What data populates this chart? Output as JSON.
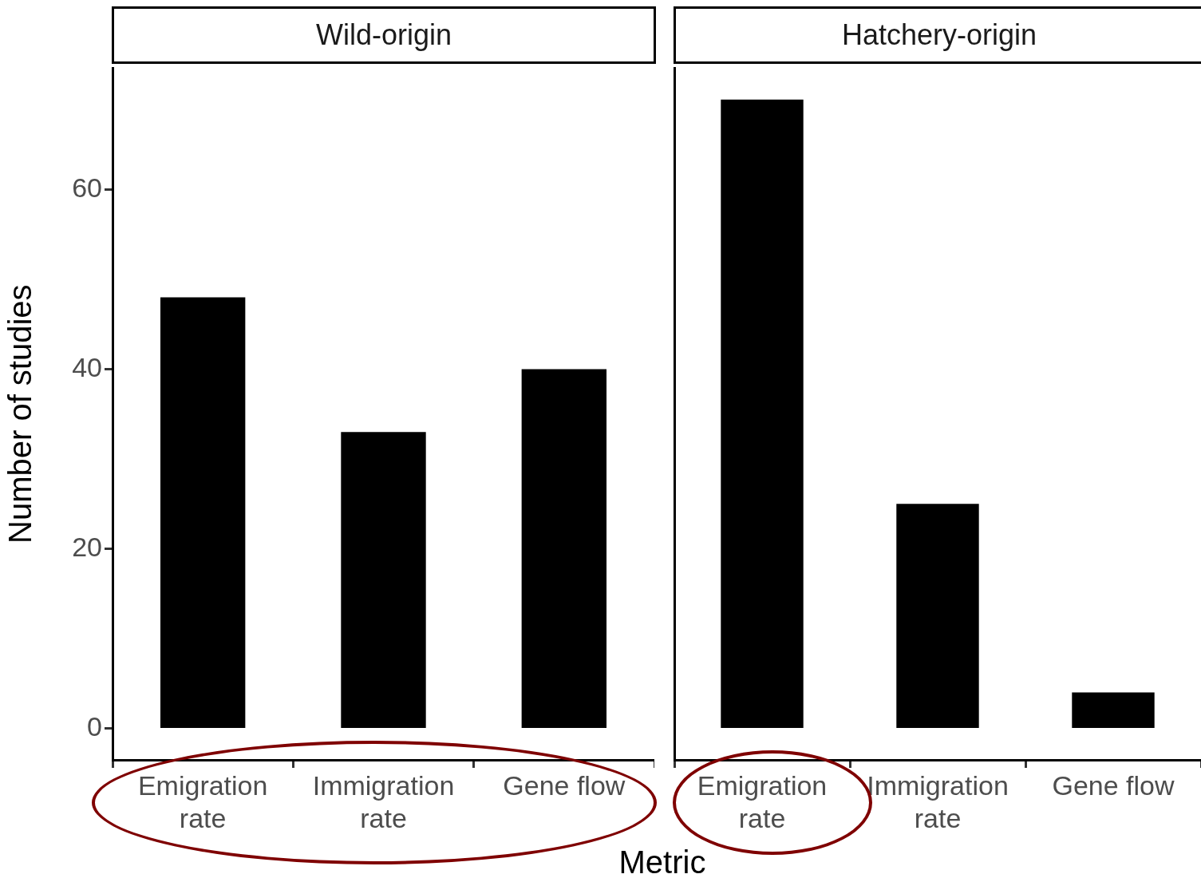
{
  "chart_data": [
    {
      "type": "bar",
      "title": "Wild-origin",
      "xlabel": "Metric",
      "ylabel": "Number of studies",
      "categories": [
        "Emigration rate",
        "Immigration rate",
        "Gene flow"
      ],
      "values": [
        48,
        33,
        40
      ],
      "color": "#000000",
      "ylim": [
        -3.5,
        73.5
      ],
      "yticks": [
        0,
        20,
        40,
        60
      ],
      "grid": false
    },
    {
      "type": "bar",
      "title": "Hatchery-origin",
      "categories": [
        "Emigration rate",
        "Immigration rate",
        "Gene flow"
      ],
      "values": [
        70,
        25,
        4
      ],
      "color": "#000000",
      "ylim": [
        -3.5,
        73.5
      ],
      "yticks": [
        0,
        20,
        40,
        60
      ],
      "grid": false,
      "tick_labels": "x"
    }
  ]
}
